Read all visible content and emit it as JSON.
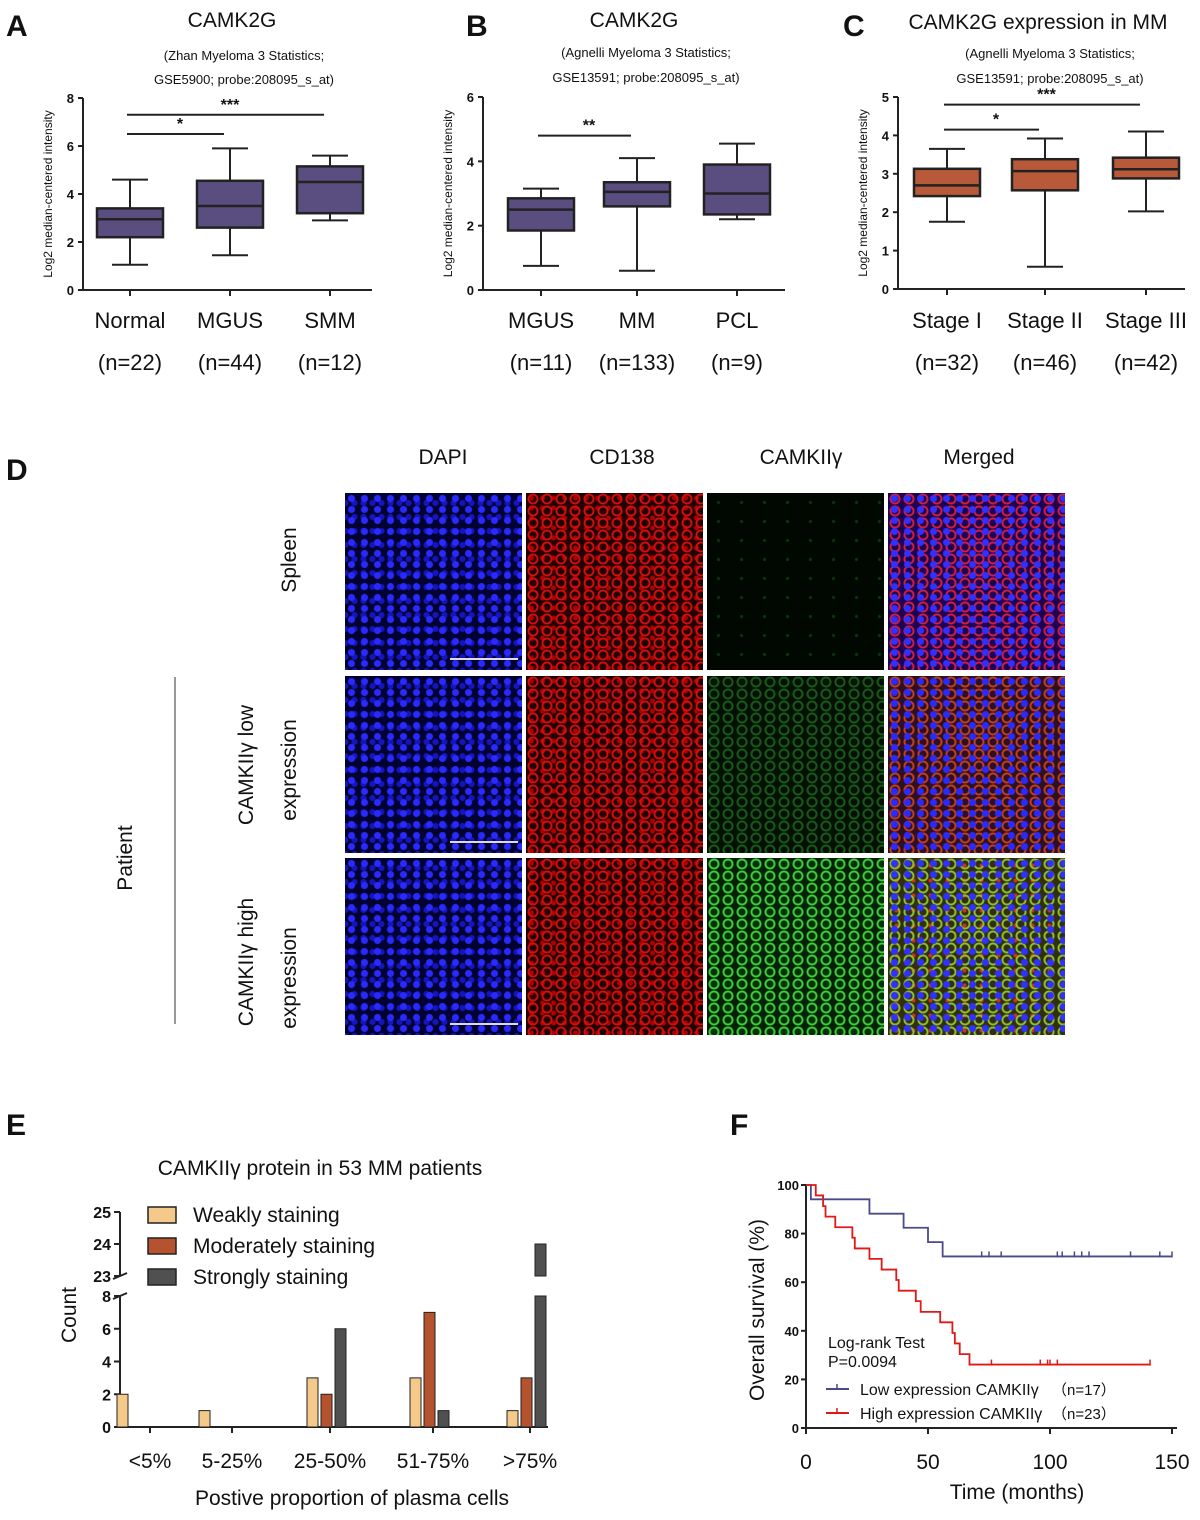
{
  "panel_letters": [
    "A",
    "B",
    "C",
    "D",
    "E",
    "F"
  ],
  "chart_data": [
    {
      "id": "A",
      "type": "box",
      "title": "CAMK2G",
      "subtitle": [
        "(Zhan Myeloma 3 Statistics;",
        "GSE5900; probe:208095_s_at)"
      ],
      "ylabel": "Log2 median-centered intensity",
      "ylim": [
        0,
        8
      ],
      "yticks": [
        0,
        2,
        4,
        6,
        8
      ],
      "color": "#5a4e80",
      "categories": [
        "Normal",
        "MGUS",
        "SMM"
      ],
      "n_labels": [
        "(n=22)",
        "(n=44)",
        "(n=12)"
      ],
      "boxes": [
        {
          "min": 1.05,
          "q1": 2.2,
          "median": 2.95,
          "q3": 3.4,
          "max": 4.6
        },
        {
          "min": 1.45,
          "q1": 2.6,
          "median": 3.5,
          "q3": 4.55,
          "max": 5.9
        },
        {
          "min": 2.9,
          "q1": 3.2,
          "median": 4.5,
          "q3": 5.15,
          "max": 5.6
        }
      ],
      "significance": [
        {
          "from": 0,
          "to": 1,
          "y": 6.5,
          "label": "*"
        },
        {
          "from": 0,
          "to": 2,
          "y": 7.3,
          "label": "***"
        }
      ]
    },
    {
      "id": "B",
      "type": "box",
      "title": "CAMK2G",
      "subtitle": [
        "(Agnelli Myeloma 3 Statistics;",
        "GSE13591; probe:208095_s_at)"
      ],
      "ylabel": "Log2 median-centered intensity",
      "ylim": [
        0,
        6
      ],
      "yticks": [
        0,
        2,
        4,
        6
      ],
      "color": "#5a4e80",
      "categories": [
        "MGUS",
        "MM",
        "PCL"
      ],
      "n_labels": [
        "(n=11)",
        "(n=133)",
        "(n=9)"
      ],
      "boxes": [
        {
          "min": 0.75,
          "q1": 1.85,
          "median": 2.5,
          "q3": 2.85,
          "max": 3.15
        },
        {
          "min": 0.6,
          "q1": 2.6,
          "median": 3.05,
          "q3": 3.35,
          "max": 4.1
        },
        {
          "min": 2.2,
          "q1": 2.35,
          "median": 3.0,
          "q3": 3.9,
          "max": 4.55
        }
      ],
      "significance": [
        {
          "from": 0,
          "to": 1,
          "y": 4.8,
          "label": "**"
        }
      ]
    },
    {
      "id": "C",
      "type": "box",
      "title": "CAMK2G expression in MM",
      "subtitle": [
        "(Agnelli Myeloma 3 Statistics;",
        "GSE13591; probe:208095_s_at)"
      ],
      "ylabel": "Log2 median-centered intensity",
      "ylim": [
        0,
        5
      ],
      "yticks": [
        0,
        1,
        2,
        3,
        4,
        5
      ],
      "color": "#b85a3a",
      "categories": [
        "Stage I",
        "Stage II",
        "Stage III"
      ],
      "n_labels": [
        "(n=32)",
        "(n=46)",
        "(n=42)"
      ],
      "boxes": [
        {
          "min": 1.75,
          "q1": 2.42,
          "median": 2.7,
          "q3": 3.13,
          "max": 3.65
        },
        {
          "min": 0.58,
          "q1": 2.57,
          "median": 3.07,
          "q3": 3.38,
          "max": 3.92
        },
        {
          "min": 2.02,
          "q1": 2.88,
          "median": 3.12,
          "q3": 3.42,
          "max": 4.1
        }
      ],
      "significance": [
        {
          "from": 0,
          "to": 1,
          "y": 4.15,
          "label": "*"
        },
        {
          "from": 0,
          "to": 2,
          "y": 4.8,
          "label": "***"
        }
      ]
    },
    {
      "id": "E",
      "type": "bar",
      "title": "CAMKIIγ protein in 53 MM patients",
      "xlabel": "Postive proportion of plasma cells",
      "ylabel": "Count",
      "categories": [
        "<5%",
        "5-25%",
        "25-50%",
        "51-75%",
        ">75%"
      ],
      "yticks_lower": [
        0,
        2,
        4,
        6,
        8
      ],
      "yticks_upper": [
        23,
        24,
        25
      ],
      "axis_break": [
        8,
        23
      ],
      "series": [
        {
          "name": "Weakly staining",
          "color": "#f5c98a",
          "values": [
            2,
            1,
            3,
            3,
            1
          ]
        },
        {
          "name": "Moderately staining",
          "color": "#b5532f",
          "values": [
            0,
            0,
            2,
            7,
            3
          ]
        },
        {
          "name": "Strongly staining",
          "color": "#505050",
          "values": [
            0,
            0,
            6,
            1,
            24
          ]
        }
      ],
      "legend": "top-left"
    },
    {
      "id": "F",
      "type": "line",
      "xlabel": "Time (months)",
      "ylabel": "Overall survival (%)",
      "xlim": [
        0,
        150
      ],
      "ylim": [
        0,
        100
      ],
      "xticks": [
        0,
        50,
        100,
        150
      ],
      "yticks": [
        0,
        20,
        40,
        60,
        80,
        100
      ],
      "annotation": [
        "Log-rank Test",
        "P=0.0094"
      ],
      "series": [
        {
          "name": "Low expression CAMKIIγ",
          "n": "（n=17）",
          "color": "#4a4a8a",
          "steps": [
            [
              0,
              100
            ],
            [
              2,
              94.1
            ],
            [
              26,
              88.2
            ],
            [
              40,
              82.4
            ],
            [
              50,
              76.5
            ],
            [
              56,
              70.6
            ],
            [
              150,
              70.6
            ]
          ],
          "censored": [
            72,
            75,
            80,
            103,
            105,
            110,
            113,
            116,
            133,
            145,
            150
          ]
        },
        {
          "name": "High expression CAMKIIγ",
          "n": "（n=23）",
          "color": "#e01818",
          "steps": [
            [
              0,
              100
            ],
            [
              4,
              95.7
            ],
            [
              7,
              91.3
            ],
            [
              8,
              87
            ],
            [
              12,
              82.6
            ],
            [
              19,
              78.3
            ],
            [
              20,
              73.9
            ],
            [
              26,
              69.6
            ],
            [
              31,
              65.2
            ],
            [
              37,
              60.9
            ],
            [
              38,
              56.5
            ],
            [
              45,
              52.2
            ],
            [
              47,
              47.8
            ],
            [
              55,
              43.5
            ],
            [
              60,
              39.1
            ],
            [
              61,
              34.8
            ],
            [
              63,
              30.4
            ],
            [
              67,
              26.1
            ],
            [
              141,
              26.1
            ]
          ],
          "censored": [
            76,
            96,
            99,
            100,
            103,
            141
          ]
        }
      ]
    }
  ],
  "panel_d": {
    "column_headers": [
      "DAPI",
      "CD138",
      "CAMKIIγ",
      "Merged"
    ],
    "row_labels": [
      "Spleen",
      [
        "CAMKIIγ low",
        "expression"
      ],
      [
        "CAMKIIγ high",
        "expression"
      ]
    ],
    "group_label": "Patient"
  }
}
